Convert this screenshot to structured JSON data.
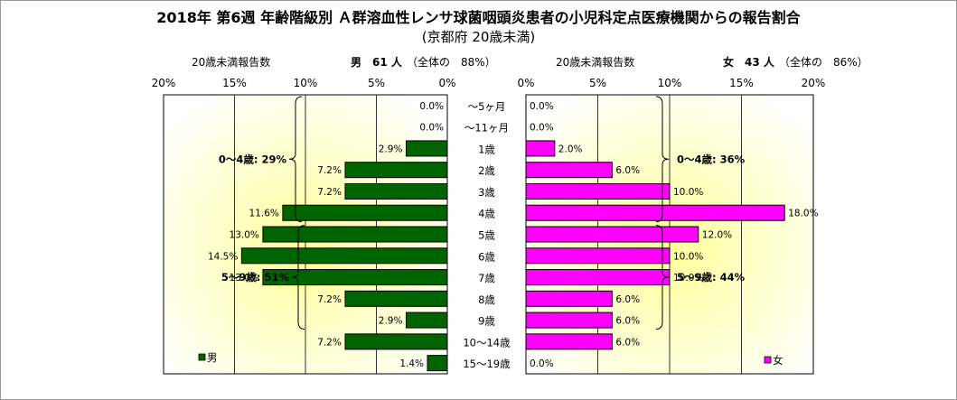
{
  "title": "2018年 第6週 年齢階級別 Ａ群溶血性レンサ球菌咽頭炎患者の小児科定点医療機関からの報告割合",
  "subtitle": "(京都府 20歳未満)",
  "male_header": {
    "count_label": "20歳未満報告数",
    "sex_count": "男　61 人",
    "share": "（全体の　88%）"
  },
  "female_header": {
    "count_label": "20歳未満報告数",
    "sex_count": "女　43 人",
    "share": "（全体の　86%）"
  },
  "colors": {
    "male": "#006400",
    "female": "#ff00ff",
    "bg_center": "#ffff99"
  },
  "chart_data": [
    {
      "type": "bar",
      "orientation": "horizontal",
      "direction": "right-to-left",
      "series": [
        {
          "name": "男",
          "values": [
            0.0,
            0.0,
            2.9,
            7.2,
            7.2,
            11.6,
            13.0,
            14.5,
            13.0,
            7.2,
            2.9,
            7.2,
            1.4
          ]
        }
      ],
      "categories": [
        "～5ヶ月",
        "～11ヶ月",
        "1歳",
        "2歳",
        "3歳",
        "4歳",
        "5歳",
        "6歳",
        "7歳",
        "8歳",
        "9歳",
        "10～14歳",
        "15～19歳"
      ],
      "value_labels": [
        "0.0%",
        "0.0%",
        "2.9%",
        "7.2%",
        "7.2%",
        "11.6%",
        "13.0%",
        "14.5%",
        "13.0%",
        "7.2%",
        "2.9%",
        "7.2%",
        "1.4%"
      ],
      "xlim": [
        0,
        20
      ],
      "xticks": [
        "20%",
        "15%",
        "10%",
        "5%",
        "0%"
      ],
      "annotations": [
        {
          "text": "0～4歳: 29%",
          "from": 0,
          "to": 5
        },
        {
          "text": "5～9歳: 51%",
          "from": 6,
          "to": 10
        }
      ],
      "legend": "男",
      "legend_position": "bottom-left",
      "grid": true
    },
    {
      "type": "bar",
      "orientation": "horizontal",
      "direction": "left-to-right",
      "series": [
        {
          "name": "女",
          "values": [
            0.0,
            0.0,
            2.0,
            6.0,
            10.0,
            18.0,
            12.0,
            10.0,
            10.0,
            6.0,
            6.0,
            6.0,
            0.0
          ]
        }
      ],
      "categories": [
        "～5ヶ月",
        "～11ヶ月",
        "1歳",
        "2歳",
        "3歳",
        "4歳",
        "5歳",
        "6歳",
        "7歳",
        "8歳",
        "9歳",
        "10～14歳",
        "15～19歳"
      ],
      "value_labels": [
        "0.0%",
        "0.0%",
        "2.0%",
        "6.0%",
        "10.0%",
        "18.0%",
        "12.0%",
        "10.0%",
        "10.0%",
        "6.0%",
        "6.0%",
        "6.0%",
        "0.0%"
      ],
      "xlim": [
        0,
        20
      ],
      "xticks": [
        "0%",
        "5%",
        "10%",
        "15%",
        "20%"
      ],
      "annotations": [
        {
          "text": "0～4歳: 36%",
          "from": 0,
          "to": 5
        },
        {
          "text": "5～9歳: 44%",
          "from": 6,
          "to": 10
        }
      ],
      "legend": "女",
      "legend_position": "bottom-right",
      "grid": true
    }
  ]
}
